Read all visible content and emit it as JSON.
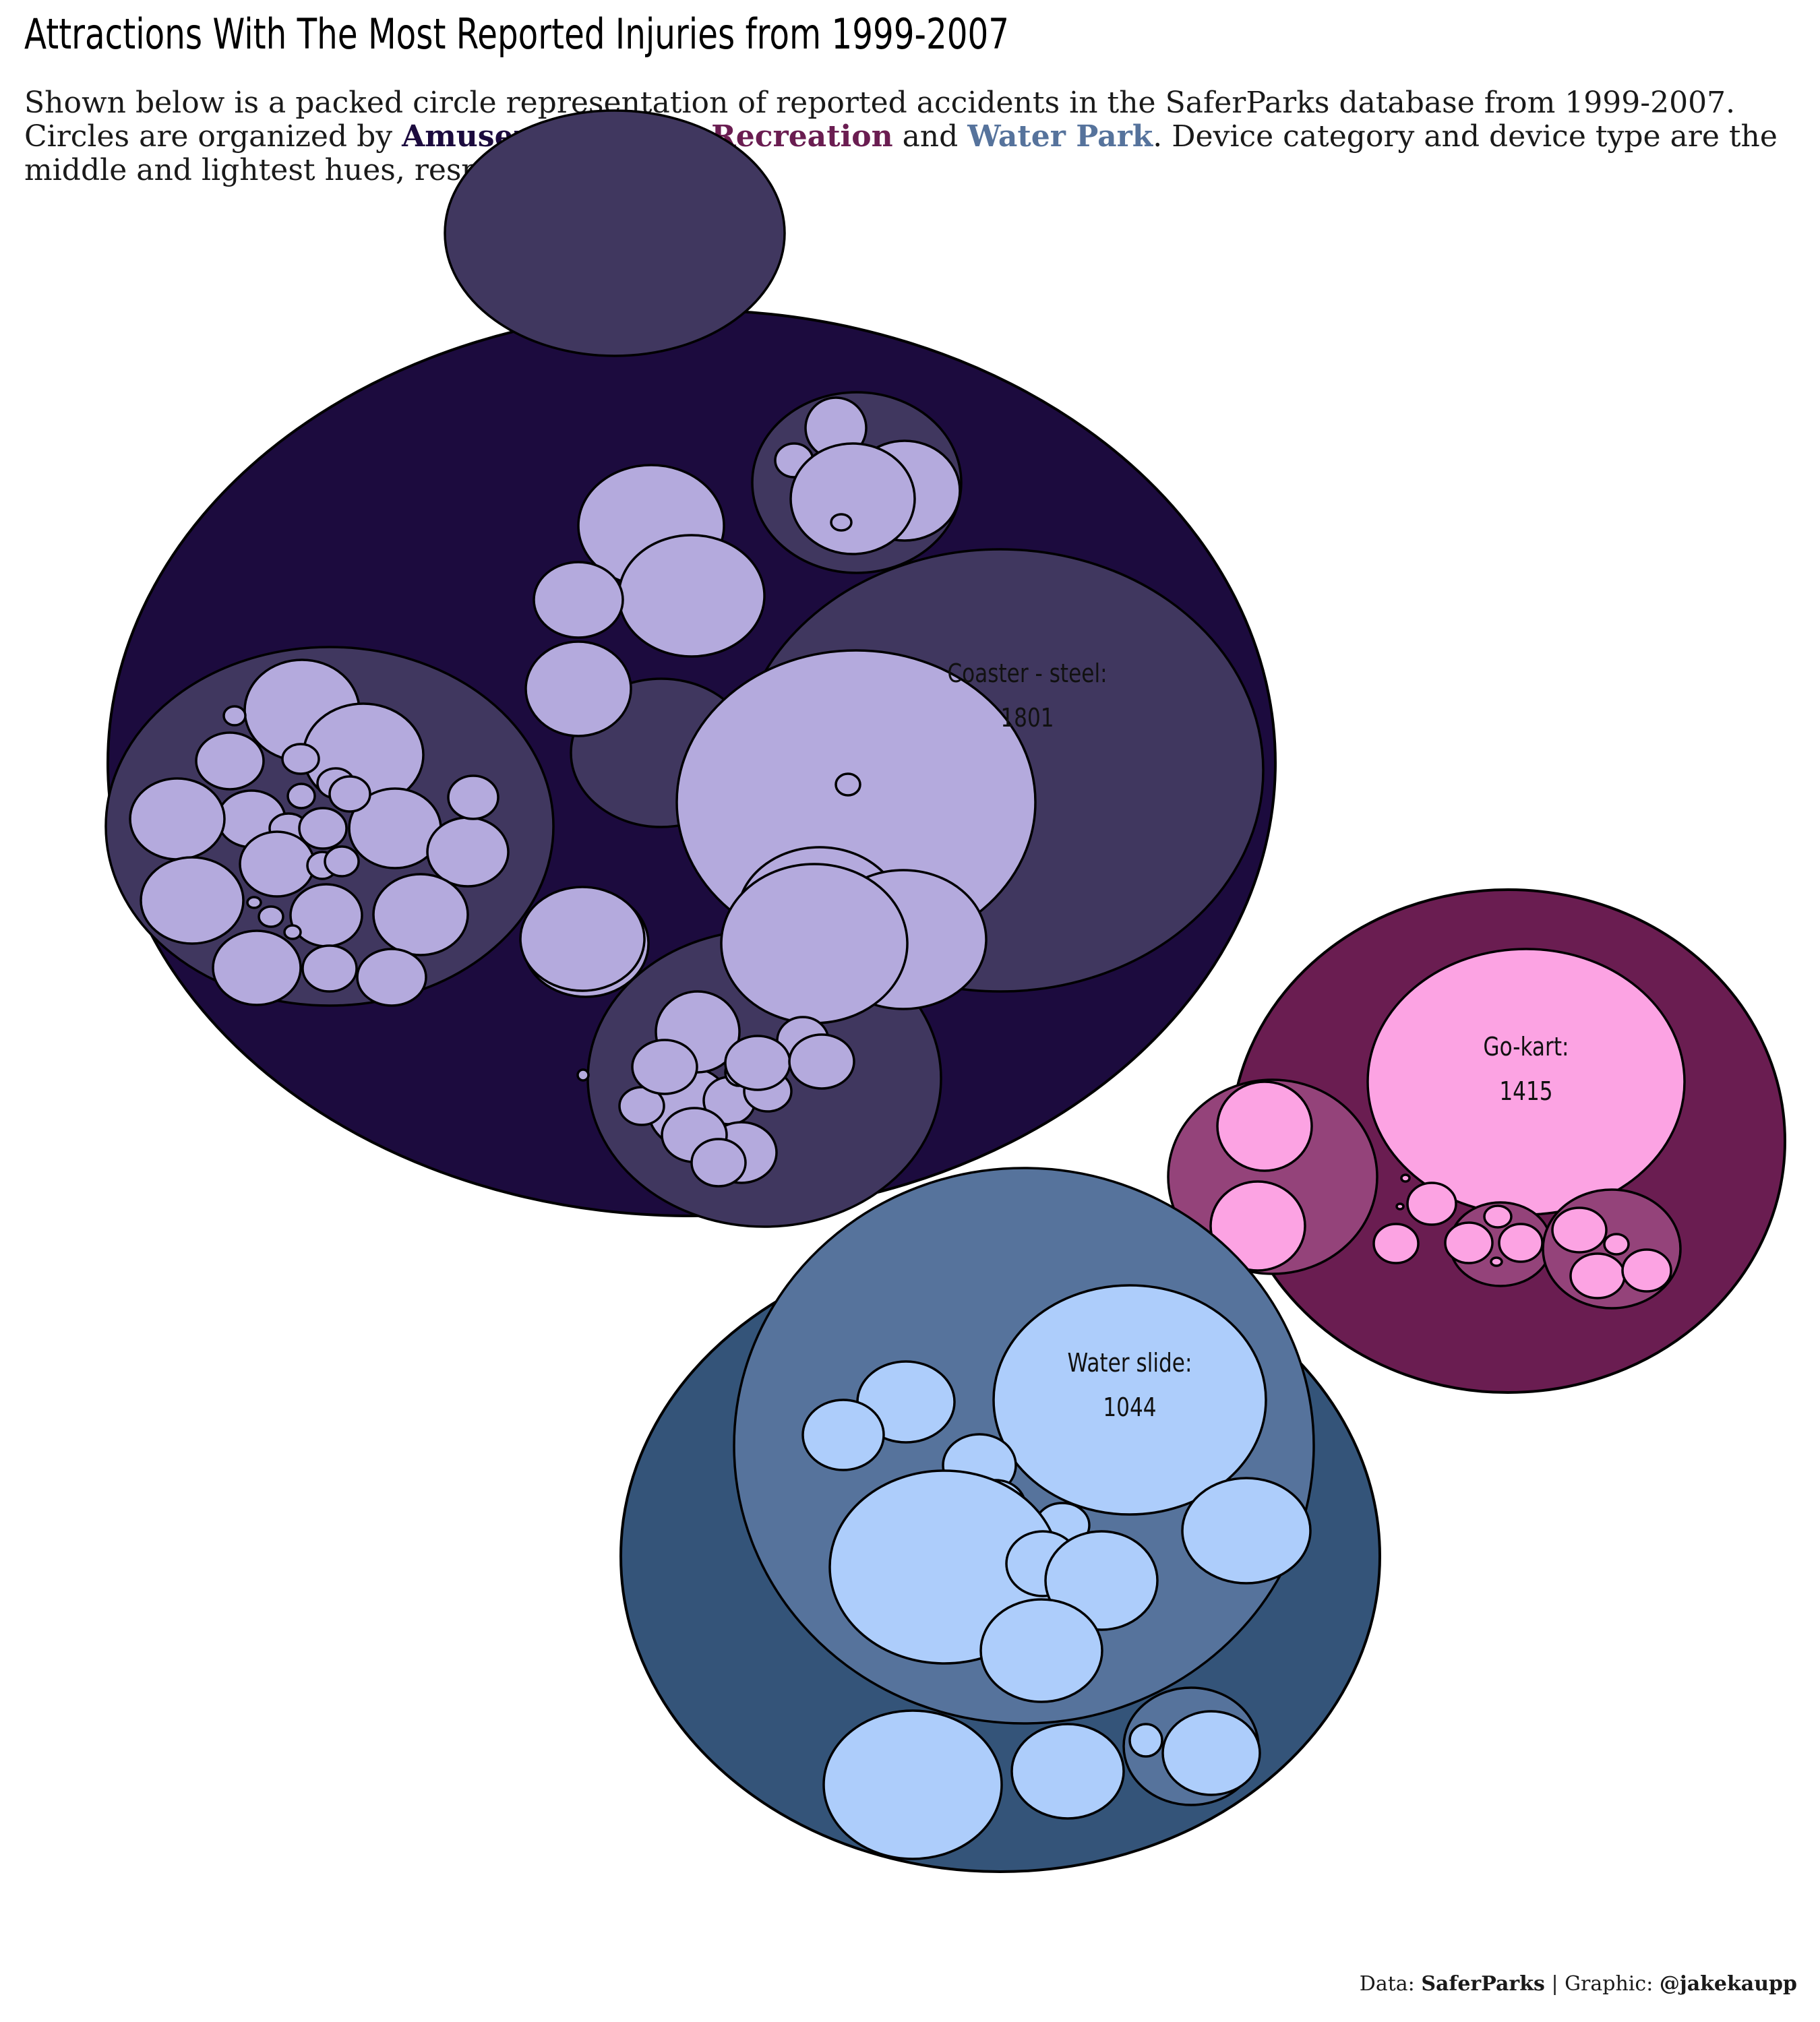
{
  "title": "Attractions With The Most Reported Injuries from 1999-2007",
  "subtitle": {
    "line1": "Shown below is a packed circle representation of reported accidents in the SaferParks database from 1999-2007.",
    "line2_pre": "Circles are organized by ",
    "amusement": "Amusement rides",
    "sep1": ", ",
    "recreation": "Recreation",
    "sep2": " and ",
    "water": "Water Park",
    "line2_post": ". Device category and device type are the middle and lightest hues, respectively."
  },
  "caption": {
    "data_prefix": "Data: ",
    "data_source": "SaferParks",
    "graphic_prefix": " | Graphic: ",
    "author": "@jakekaupp"
  },
  "colors": {
    "amusement": [
      "#1c0b3e",
      "#40375f",
      "#b4aadd"
    ],
    "recreation": [
      "#6a1d51",
      "#94437a",
      "#fca3e3"
    ],
    "water": [
      "#345479",
      "#56739c",
      "#adcdfb"
    ],
    "stroke": "#000000"
  },
  "chart_data": {
    "type": "packed-circle",
    "hierarchy": [
      "industry sector",
      "device category",
      "device type"
    ],
    "groups": [
      {
        "name": "Amusement rides",
        "color_key": "amusement",
        "labeled_leaf": {
          "name": "Coaster - steel",
          "value": 1801
        }
      },
      {
        "name": "Recreation",
        "color_key": "recreation",
        "labeled_leaf": {
          "name": "Go-kart",
          "value": 1415
        }
      },
      {
        "name": "Water Park",
        "color_key": "water",
        "labeled_leaf": {
          "name": "Water slide",
          "value": 1044
        }
      }
    ],
    "labels": [
      {
        "line1": "Coaster - steel:",
        "line2": "1801"
      },
      {
        "line1": "Go-kart:",
        "line2": "1415"
      },
      {
        "line1": "Water slide:",
        "line2": "1044"
      }
    ]
  }
}
